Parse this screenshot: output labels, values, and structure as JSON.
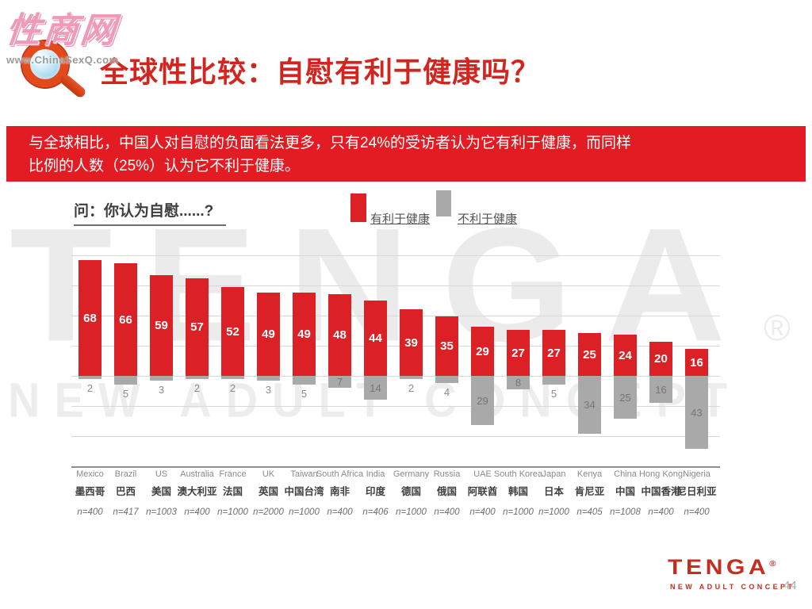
{
  "page": {
    "site_watermark": {
      "name": "性商网",
      "url": "www.ChinaSexQ.com"
    },
    "title": "全球性比较：自慰有利于健康吗？",
    "page_number": "44"
  },
  "banner": {
    "bg_color": "#e31b22",
    "lines": [
      "与全球相比，中国人对自慰的负面看法更多，只有24%的受访者认为它有利于健康，而同样",
      "比例的人数（25%）认为它不利于健康。"
    ]
  },
  "chart_data": {
    "type": "bar",
    "question": "问：你认为自慰......?",
    "legend": [
      {
        "label": "有利于健康",
        "color": "#dc2126"
      },
      {
        "label": "不利于健康",
        "color": "#a9a9a9"
      }
    ],
    "legend_position": "top",
    "grid_on": true,
    "ylim": [
      -52.5,
      70
    ],
    "gridline_step_pct": 17.5,
    "baseline": 0,
    "categories": [
      {
        "en": "Mexico",
        "zh": "墨西哥",
        "n": "n=400"
      },
      {
        "en": "Brazil",
        "zh": "巴西",
        "n": "n=417"
      },
      {
        "en": "US",
        "zh": "美国",
        "n": "n=1003"
      },
      {
        "en": "Australia",
        "zh": "澳大利亚",
        "n": "n=400"
      },
      {
        "en": "France",
        "zh": "法国",
        "n": "n=1000"
      },
      {
        "en": "UK",
        "zh": "英国",
        "n": "n=2000"
      },
      {
        "en": "Taiwan",
        "zh": "中国台湾",
        "n": "n=1000"
      },
      {
        "en": "South Africa",
        "zh": "南非",
        "n": "n=400"
      },
      {
        "en": "India",
        "zh": "印度",
        "n": "n=406"
      },
      {
        "en": "Germany",
        "zh": "德国",
        "n": "n=1000"
      },
      {
        "en": "Russia",
        "zh": "俄国",
        "n": "n=400"
      },
      {
        "en": "UAE",
        "zh": "阿联酋",
        "n": "n=400"
      },
      {
        "en": "South Korea",
        "zh": "韩国",
        "n": "n=1000"
      },
      {
        "en": "Japan",
        "zh": "日本",
        "n": "n=1000"
      },
      {
        "en": "Kenya",
        "zh": "肯尼亚",
        "n": "n=405"
      },
      {
        "en": "China",
        "zh": "中国",
        "n": "n=1008"
      },
      {
        "en": "Hong Kong",
        "zh": "中国香港",
        "n": "n=400"
      },
      {
        "en": "Nigeria",
        "zh": "尼日利亚",
        "n": "n=400"
      }
    ],
    "series": [
      {
        "name": "有利于健康",
        "color": "#dc2126",
        "direction": "up",
        "values": [
          68,
          66,
          59,
          57,
          52,
          49,
          49,
          48,
          44,
          39,
          35,
          29,
          27,
          27,
          25,
          24,
          20,
          16
        ]
      },
      {
        "name": "不利于健康",
        "color": "#a9a9a9",
        "direction": "down",
        "values": [
          2,
          5,
          3,
          2,
          2,
          3,
          5,
          7,
          14,
          2,
          4,
          29,
          8,
          5,
          34,
          25,
          16,
          43
        ]
      }
    ]
  },
  "watermark": {
    "text": "TENGA",
    "reg": "®",
    "tagline": "NEW ADULT CONCEPT"
  },
  "footer": {
    "logo": "TENGA",
    "reg": "®",
    "tagline": "NEW ADULT CONCEPT"
  }
}
